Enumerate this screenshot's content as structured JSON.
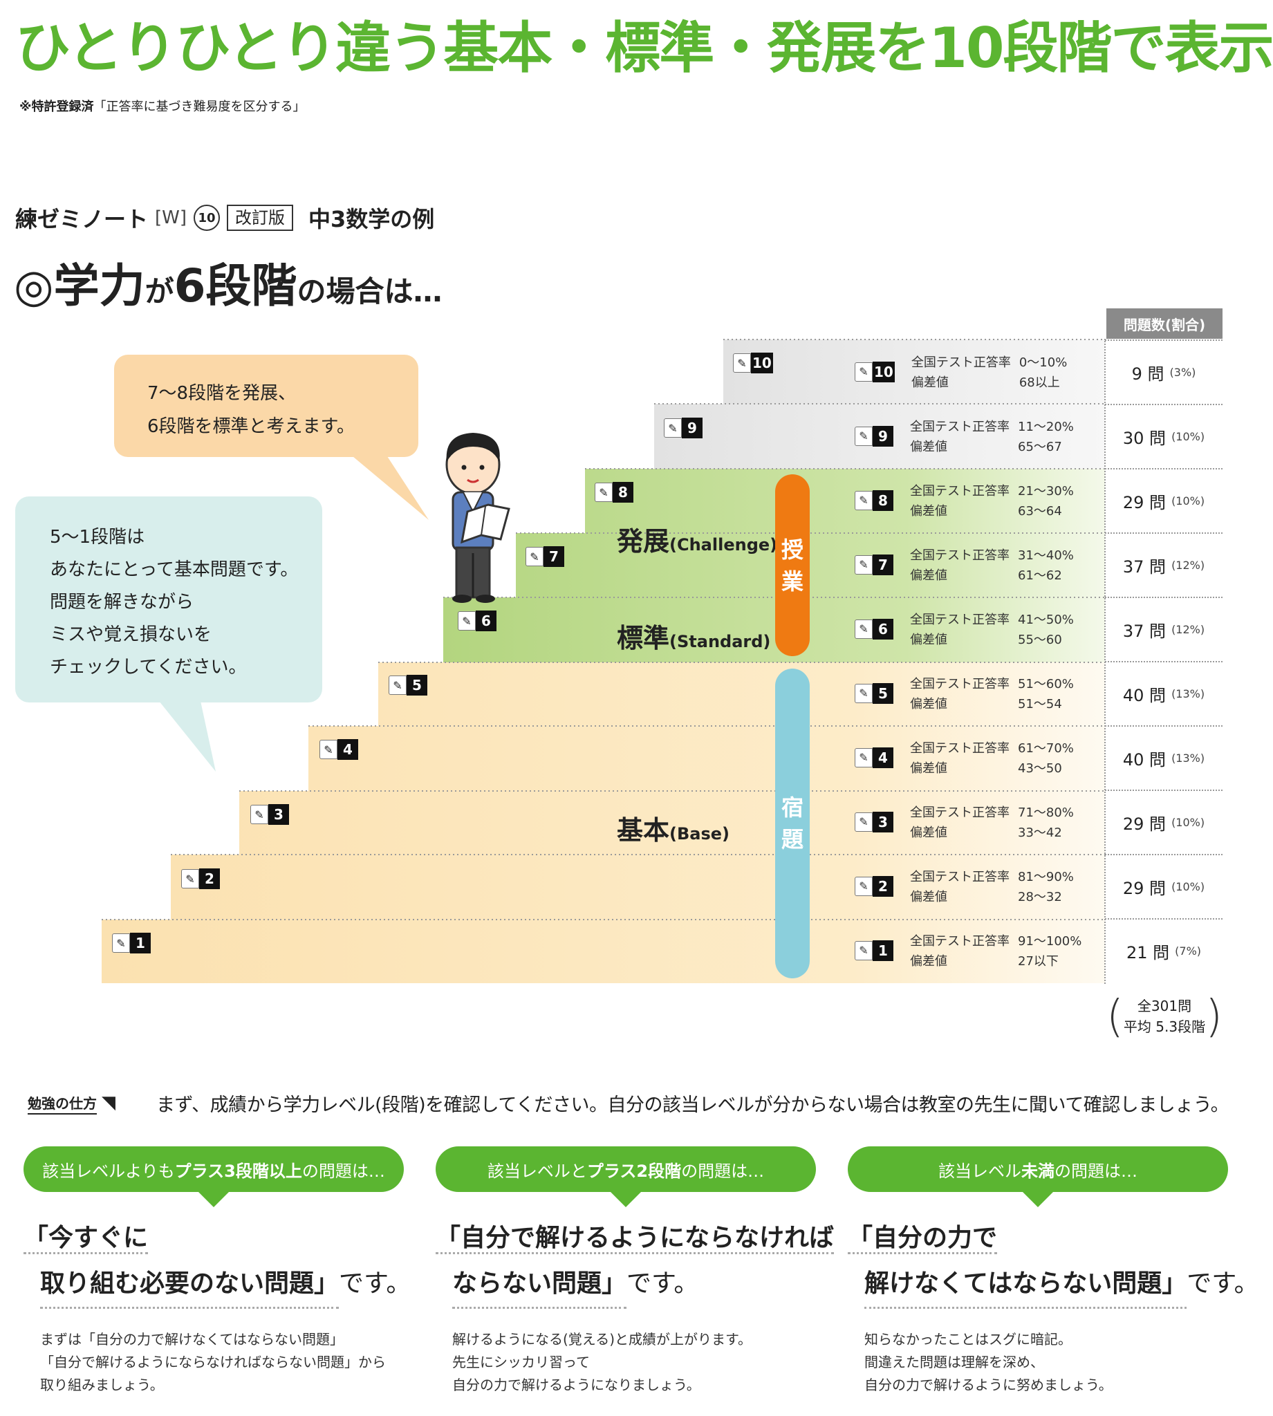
{
  "header": {
    "title": "ひとりひとり違う基本・標準・発展を10段階で表示",
    "patent_bold": "※特許登録済",
    "patent_note": "「正答率に基づき難易度を区分する」"
  },
  "book": {
    "name": "練ゼミノート",
    "w_mark": "[W]",
    "number": "10",
    "edition": "改訂版",
    "subject": "中3数学の例"
  },
  "level_heading": {
    "prefix": "◎学力",
    "ga": "が",
    "level": "6段階",
    "suffix": "の場合は…"
  },
  "bubbles": {
    "orange": {
      "line1": "7〜8段階を発展、",
      "line2": "6段階を標準と考えます。"
    },
    "teal": {
      "line1": "5〜1段階は",
      "line2": "あなたにとって基本問題です。",
      "line3": "問題を解きながら",
      "line4": "ミスや覚え損ないを",
      "line5": "チェックしてください。"
    }
  },
  "bands": {
    "challenge": {
      "ja": "発展",
      "en": "(Challenge)"
    },
    "standard": {
      "ja": "標準",
      "en": "(Standard)"
    },
    "base": {
      "ja": "基本",
      "en": "(Base)"
    }
  },
  "pills": {
    "class": {
      "c1": "授",
      "c2": "業"
    },
    "home": {
      "c1": "宿",
      "c2": "題"
    }
  },
  "table": {
    "header": "問題数(割合)",
    "rate_label": "全国テスト正答率",
    "dev_label": "偏差値",
    "rows": [
      {
        "level": "10",
        "rate": "0〜10%",
        "dev": "68以上",
        "count": "9 問",
        "pct": "(3%)"
      },
      {
        "level": "9",
        "rate": "11〜20%",
        "dev": "65〜67",
        "count": "30 問",
        "pct": "(10%)"
      },
      {
        "level": "8",
        "rate": "21〜30%",
        "dev": "63〜64",
        "count": "29 問",
        "pct": "(10%)"
      },
      {
        "level": "7",
        "rate": "31〜40%",
        "dev": "61〜62",
        "count": "37 問",
        "pct": "(12%)"
      },
      {
        "level": "6",
        "rate": "41〜50%",
        "dev": "55〜60",
        "count": "37 問",
        "pct": "(12%)"
      },
      {
        "level": "5",
        "rate": "51〜60%",
        "dev": "51〜54",
        "count": "40 問",
        "pct": "(13%)"
      },
      {
        "level": "4",
        "rate": "61〜70%",
        "dev": "43〜50",
        "count": "40 問",
        "pct": "(13%)"
      },
      {
        "level": "3",
        "rate": "71〜80%",
        "dev": "33〜42",
        "count": "29 問",
        "pct": "(10%)"
      },
      {
        "level": "2",
        "rate": "81〜90%",
        "dev": "28〜32",
        "count": "29 問",
        "pct": "(10%)"
      },
      {
        "level": "1",
        "rate": "91〜100%",
        "dev": "27以下",
        "count": "21 問",
        "pct": "(7%)"
      }
    ],
    "total_line1": "全301問",
    "total_line2": "平均 5.3段階"
  },
  "colors": {
    "title_green": "#5bb531",
    "challenge_green": "#b9d98c",
    "base_cream": "#fbe3b4",
    "top_gray": "#e4e4e4",
    "orange_pill": "#ef7a12",
    "blue_pill": "#8bcfdc",
    "orange_bubble": "#fbd8a8",
    "teal_bubble": "#d8eeec"
  },
  "study": {
    "label": "勉強の仕方",
    "text": "まず、成績から学力レベル(段階)を確認してください。自分の該当レベルが分からない場合は教室の先生に聞いて確認しましょう。"
  },
  "columns": [
    {
      "pill_pre": "該当レベルよりも",
      "pill_bold": "プラス3段階以上",
      "pill_post": "の問題は…",
      "big1": "「今すぐに",
      "big2": "取り組む必要のない問題」",
      "big2_suffix": "です。",
      "body1": "まずは「自分の力で解けなくてはならない問題」",
      "body2": "「自分で解けるようにならなければならない問題」から",
      "body3": "取り組みましょう。"
    },
    {
      "pill_pre": "該当レベルと",
      "pill_bold": "プラス2段階",
      "pill_post": "の問題は…",
      "big1": "「自分で解けるようにならなければ",
      "big2": "ならない問題」",
      "big2_suffix": "です。",
      "body1": "解けるようになる(覚える)と成績が上がります。",
      "body2": "先生にシッカリ習って",
      "body3": "自分の力で解けるようになりましょう。"
    },
    {
      "pill_pre": "該当レベル",
      "pill_bold": "未満",
      "pill_post": "の問題は…",
      "big1": "「自分の力で",
      "big2": "解けなくてはならない問題」",
      "big2_suffix": "です。",
      "body1": "知らなかったことはスグに暗記。",
      "body2": "間違えた問題は理解を深め、",
      "body3": "自分の力で解けるように努めましょう。"
    }
  ],
  "icons": {
    "book": "open-book-pencil-icon",
    "person": "student-reading-figure"
  }
}
